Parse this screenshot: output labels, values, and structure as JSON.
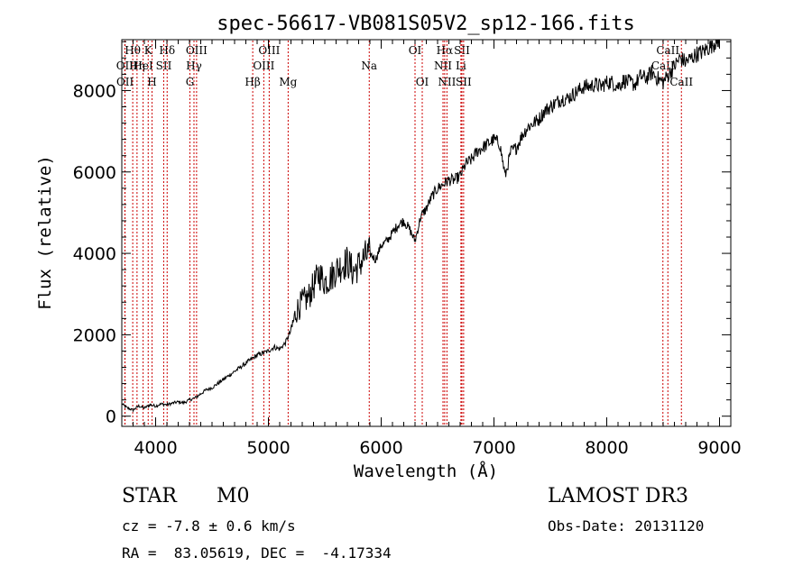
{
  "chart_data": {
    "type": "line",
    "title": "spec-56617-VB081S05V2_sp12-166.fits",
    "xlabel": "Wavelength (Å)",
    "ylabel": "Flux (relative)",
    "xlim": [
      3700,
      9100
    ],
    "ylim": [
      -250,
      9250
    ],
    "xticks": [
      4000,
      5000,
      6000,
      7000,
      8000,
      9000
    ],
    "yticks": [
      0,
      2000,
      4000,
      6000,
      8000
    ],
    "series": [
      {
        "name": "spectrum",
        "x": [
          3700,
          3750,
          3800,
          3850,
          3900,
          3950,
          4000,
          4050,
          4100,
          4150,
          4200,
          4250,
          4300,
          4350,
          4400,
          4450,
          4500,
          4550,
          4600,
          4650,
          4700,
          4750,
          4800,
          4850,
          4900,
          4950,
          5000,
          5050,
          5100,
          5150,
          5200,
          5250,
          5300,
          5350,
          5400,
          5450,
          5500,
          5550,
          5600,
          5650,
          5700,
          5750,
          5800,
          5850,
          5900,
          5950,
          6000,
          6050,
          6100,
          6150,
          6200,
          6250,
          6300,
          6350,
          6400,
          6450,
          6500,
          6550,
          6600,
          6650,
          6700,
          6750,
          6800,
          6850,
          6900,
          6950,
          7000,
          7050,
          7100,
          7150,
          7200,
          7250,
          7300,
          7350,
          7400,
          7450,
          7500,
          7550,
          7600,
          7650,
          7700,
          7750,
          7800,
          7850,
          7900,
          7950,
          8000,
          8050,
          8100,
          8150,
          8200,
          8250,
          8300,
          8350,
          8400,
          8450,
          8500,
          8550,
          8600,
          8650,
          8700,
          8750,
          8800,
          8850,
          8900,
          8950,
          8980,
          9000
        ],
        "y": [
          300,
          200,
          150,
          250,
          200,
          280,
          250,
          300,
          280,
          320,
          350,
          330,
          400,
          450,
          550,
          650,
          700,
          800,
          900,
          1000,
          1100,
          1200,
          1300,
          1400,
          1500,
          1550,
          1600,
          1700,
          1650,
          1800,
          2100,
          2600,
          2800,
          2900,
          3200,
          3500,
          3300,
          3400,
          3600,
          3700,
          3800,
          3550,
          3700,
          3900,
          4000,
          3850,
          4200,
          4300,
          4500,
          4700,
          4800,
          4600,
          4300,
          4900,
          5100,
          5400,
          5600,
          5700,
          5800,
          5800,
          5900,
          6200,
          6300,
          6500,
          6600,
          6700,
          6800,
          6700,
          5900,
          6500,
          6600,
          6900,
          7100,
          7200,
          7300,
          7500,
          7600,
          7700,
          7800,
          7800,
          7900,
          8000,
          8100,
          8100,
          8150,
          8100,
          8200,
          8200,
          8100,
          8250,
          8200,
          8150,
          8350,
          8300,
          8450,
          8300,
          8200,
          8400,
          8600,
          8800,
          8700,
          8800,
          8900,
          8950,
          9050,
          9150,
          9250,
          9250
        ]
      }
    ],
    "line_markers": [
      {
        "wl": 3797,
        "labels": [
          "Hθ"
        ],
        "row": 0
      },
      {
        "wl": 3727,
        "labels": [
          "OII"
        ],
        "row": 1
      },
      {
        "wl": 3729,
        "labels": [
          "OII"
        ],
        "row": 2
      },
      {
        "wl": 3835,
        "labels": [
          "Hη"
        ],
        "row": 1
      },
      {
        "wl": 3889,
        "labels": [
          "HeI"
        ],
        "row": 1
      },
      {
        "wl": 3934,
        "labels": [
          "K"
        ],
        "row": 0
      },
      {
        "wl": 3968,
        "labels": [
          "H"
        ],
        "row": 2
      },
      {
        "wl": 4072,
        "labels": [
          "SII"
        ],
        "row": 1
      },
      {
        "wl": 4102,
        "labels": [
          "Hδ"
        ],
        "row": 0
      },
      {
        "wl": 4304,
        "labels": [
          "G"
        ],
        "row": 2
      },
      {
        "wl": 4340,
        "labels": [
          "Hγ"
        ],
        "row": 1
      },
      {
        "wl": 4363,
        "labels": [
          "OIII"
        ],
        "row": 0
      },
      {
        "wl": 4861,
        "labels": [
          "Hβ"
        ],
        "row": 2
      },
      {
        "wl": 4959,
        "labels": [
          "OIII"
        ],
        "row": 1
      },
      {
        "wl": 5007,
        "labels": [
          "OIII"
        ],
        "row": 0
      },
      {
        "wl": 5175,
        "labels": [
          "Mg"
        ],
        "row": 2
      },
      {
        "wl": 5894,
        "labels": [
          "Na"
        ],
        "row": 1
      },
      {
        "wl": 6300,
        "labels": [
          "OI"
        ],
        "row": 0
      },
      {
        "wl": 6364,
        "labels": [
          "OI"
        ],
        "row": 2
      },
      {
        "wl": 6548,
        "labels": [
          "NII"
        ],
        "row": 1
      },
      {
        "wl": 6563,
        "labels": [
          "Hα"
        ],
        "row": 0
      },
      {
        "wl": 6583,
        "labels": [
          "NII"
        ],
        "row": 2
      },
      {
        "wl": 6707,
        "labels": [
          "Li"
        ],
        "row": 1
      },
      {
        "wl": 6716,
        "labels": [
          "SII"
        ],
        "row": 0
      },
      {
        "wl": 6731,
        "labels": [
          "SII"
        ],
        "row": 2
      },
      {
        "wl": 8498,
        "labels": [
          "CaII"
        ],
        "row": 1
      },
      {
        "wl": 8542,
        "labels": [
          "CaII"
        ],
        "row": 0
      },
      {
        "wl": 8662,
        "labels": [
          "CaII"
        ],
        "row": 2
      }
    ],
    "line_color": "#cc0000",
    "spectrum_color": "#000000"
  },
  "info": {
    "class_label": "STAR",
    "subclass": "M0",
    "survey": "LAMOST DR3",
    "cz": "cz = -7.8 ± 0.6 km/s",
    "obs_date": "Obs-Date: 20131120",
    "coords": "RA =  83.05619, DEC =  -4.17334"
  }
}
